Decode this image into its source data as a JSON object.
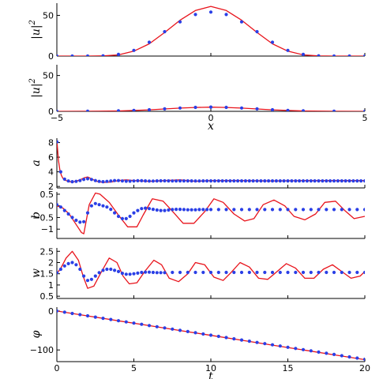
{
  "colors": {
    "model_line": "#e8131b",
    "simulation_dots": "#2a3fe6",
    "axes": "#000000"
  },
  "chart_data": [
    {
      "id": "profile_a",
      "type": "line",
      "ylabel": "|u|^2",
      "xlabel": "",
      "xlim": [
        -5,
        5
      ],
      "ylim": [
        0,
        65
      ],
      "yticks": [
        0,
        50
      ],
      "yticklabels": [
        "0",
        "50"
      ],
      "xticks": [
        -5,
        0,
        5
      ],
      "xticklabels": [],
      "series": [
        {
          "style": "line",
          "x": [
            -5,
            -4.5,
            -4,
            -3.5,
            -3,
            -2.5,
            -2,
            -1.5,
            -1,
            -0.5,
            0,
            0.5,
            1,
            1.5,
            2,
            2.5,
            3,
            3.5,
            4,
            4.5,
            5
          ],
          "y": [
            0,
            0,
            0,
            0.2,
            1.5,
            6,
            15,
            29,
            44,
            56,
            61,
            56,
            44,
            29,
            15,
            6,
            1.5,
            0.2,
            0,
            0,
            0
          ]
        },
        {
          "style": "dots",
          "x": [
            -5,
            -4.5,
            -4,
            -3.5,
            -3,
            -2.5,
            -2,
            -1.5,
            -1,
            -0.5,
            0,
            0.5,
            1,
            1.5,
            2,
            2.5,
            3,
            3.5,
            4,
            4.5,
            5
          ],
          "y": [
            0,
            0,
            0,
            0.3,
            2,
            7,
            17,
            30,
            42,
            51,
            54,
            51,
            42,
            30,
            17,
            7,
            2,
            0.3,
            0,
            0,
            0
          ]
        }
      ]
    },
    {
      "id": "profile_b",
      "type": "line",
      "ylabel": "|u|^2",
      "xlabel": "x",
      "xlim": [
        -5,
        5
      ],
      "ylim": [
        0,
        65
      ],
      "yticks": [
        0,
        50
      ],
      "yticklabels": [
        "0",
        "50"
      ],
      "xticks": [
        -5,
        0,
        5
      ],
      "xticklabels": [
        "−5",
        "0",
        "5"
      ],
      "series": [
        {
          "style": "line",
          "x": [
            -5,
            -4,
            -3,
            -2.5,
            -2,
            -1.5,
            -1,
            -0.5,
            0,
            0.5,
            1,
            1.5,
            2,
            2.5,
            3,
            4,
            5
          ],
          "y": [
            0,
            0.1,
            0.6,
            1.2,
            2.1,
            3.3,
            4.5,
            5.4,
            5.8,
            5.4,
            4.5,
            3.3,
            2.1,
            1.2,
            0.6,
            0.1,
            0
          ]
        },
        {
          "style": "dots",
          "x": [
            -5,
            -4,
            -3,
            -2.5,
            -2,
            -1.5,
            -1,
            -0.5,
            0,
            0.5,
            1,
            1.5,
            2,
            2.5,
            3,
            4,
            5
          ],
          "y": [
            0,
            0.1,
            0.7,
            1.3,
            2.2,
            3.4,
            4.6,
            5.5,
            5.9,
            5.5,
            4.6,
            3.4,
            2.2,
            1.3,
            0.7,
            0.1,
            0
          ]
        }
      ]
    },
    {
      "id": "a_vs_t",
      "type": "line",
      "ylabel": "a",
      "xlabel": "",
      "xlim": [
        0,
        20
      ],
      "ylim": [
        1.8,
        8.6
      ],
      "yticks": [
        2,
        4,
        6,
        8
      ],
      "yticklabels": [
        "2",
        "4",
        "6",
        "8"
      ],
      "xticks": [
        0,
        5,
        10,
        15,
        20
      ],
      "xticklabels": [],
      "series": [
        {
          "style": "line",
          "x": [
            0,
            0.1,
            0.2,
            0.3,
            0.4,
            0.6,
            0.8,
            1,
            1.2,
            1.5,
            1.8,
            2,
            2.3,
            2.6,
            3,
            3.5,
            4,
            4.5,
            5,
            6,
            7,
            8,
            9,
            10,
            12,
            14,
            16,
            18,
            20
          ],
          "y": [
            8.3,
            5.6,
            4.2,
            3.5,
            3.1,
            2.8,
            2.65,
            2.6,
            2.7,
            2.9,
            3.2,
            3.3,
            3.0,
            2.7,
            2.55,
            2.6,
            2.8,
            2.9,
            2.8,
            2.7,
            2.8,
            2.9,
            2.7,
            2.8,
            2.8,
            2.75,
            2.8,
            2.8,
            2.8
          ]
        },
        {
          "style": "dots",
          "x": [
            0,
            0.25,
            0.5,
            0.75,
            1,
            1.25,
            1.5,
            1.75,
            2,
            2.25,
            2.5,
            2.75,
            3,
            3.25,
            3.5,
            3.75,
            4,
            4.25,
            4.5,
            4.75,
            5,
            5.25,
            5.5,
            5.75,
            6,
            6.25,
            6.5,
            6.75,
            7,
            7.25,
            7.5,
            7.75,
            8,
            8.25,
            8.5,
            8.75,
            9,
            9.25,
            9.5,
            9.75,
            10,
            10.25,
            10.5,
            10.75,
            11,
            11.25,
            11.5,
            11.75,
            12,
            12.25,
            12.5,
            12.75,
            13,
            13.25,
            13.5,
            13.75,
            14,
            14.25,
            14.5,
            14.75,
            15,
            15.25,
            15.5,
            15.75,
            16,
            16.25,
            16.5,
            16.75,
            17,
            17.25,
            17.5,
            17.75,
            18,
            18.25,
            18.5,
            18.75,
            19,
            19.25,
            19.5,
            19.75,
            20
          ],
          "y": [
            8.1,
            4.0,
            3.0,
            2.75,
            2.65,
            2.7,
            2.8,
            2.95,
            3.05,
            2.95,
            2.8,
            2.7,
            2.65,
            2.7,
            2.75,
            2.8,
            2.8,
            2.75,
            2.72,
            2.72,
            2.75,
            2.78,
            2.78,
            2.76,
            2.74,
            2.74,
            2.76,
            2.77,
            2.77,
            2.76,
            2.75,
            2.75,
            2.76,
            2.76,
            2.76,
            2.76,
            2.75,
            2.75,
            2.76,
            2.76,
            2.76,
            2.76,
            2.76,
            2.76,
            2.76,
            2.76,
            2.76,
            2.76,
            2.76,
            2.76,
            2.76,
            2.76,
            2.76,
            2.76,
            2.76,
            2.76,
            2.76,
            2.76,
            2.76,
            2.76,
            2.76,
            2.76,
            2.76,
            2.76,
            2.76,
            2.76,
            2.76,
            2.76,
            2.76,
            2.76,
            2.76,
            2.76,
            2.76,
            2.76,
            2.76,
            2.76,
            2.76,
            2.76,
            2.76,
            2.76,
            2.76
          ]
        }
      ]
    },
    {
      "id": "b_vs_t",
      "type": "line",
      "ylabel": "b",
      "xlabel": "",
      "xlim": [
        0,
        20
      ],
      "ylim": [
        -1.4,
        0.6
      ],
      "yticks": [
        -1,
        -0.5,
        0,
        0.5
      ],
      "yticklabels": [
        "−1",
        "−0.5",
        "0",
        "0.5"
      ],
      "xticks": [
        0,
        5,
        10,
        15,
        20
      ],
      "xticklabels": [],
      "series": [
        {
          "style": "line",
          "x": [
            0,
            0.4,
            0.8,
            1.2,
            1.6,
            1.75,
            2.1,
            2.5,
            2.8,
            3.4,
            4.0,
            4.6,
            5.2,
            5.6,
            6.2,
            6.9,
            7.6,
            8.2,
            8.9,
            9.6,
            10.2,
            10.8,
            11.5,
            12.2,
            12.8,
            13.4,
            14.1,
            14.8,
            15.4,
            16.1,
            16.8,
            17.4,
            18.1,
            18.7,
            19.3,
            20
          ],
          "y": [
            0,
            -0.1,
            -0.35,
            -0.75,
            -1.15,
            -1.2,
            0.05,
            0.55,
            0.5,
            0.15,
            -0.4,
            -0.9,
            -0.9,
            -0.4,
            0.3,
            0.2,
            -0.3,
            -0.75,
            -0.75,
            -0.25,
            0.3,
            0.15,
            -0.35,
            -0.65,
            -0.55,
            0.05,
            0.25,
            0.0,
            -0.45,
            -0.6,
            -0.35,
            0.15,
            0.2,
            -0.2,
            -0.55,
            -0.45
          ]
        },
        {
          "style": "dots",
          "x": [
            0,
            0.25,
            0.5,
            0.75,
            1,
            1.25,
            1.5,
            1.75,
            2,
            2.25,
            2.5,
            2.75,
            3,
            3.25,
            3.5,
            3.75,
            4,
            4.25,
            4.5,
            4.75,
            5,
            5.25,
            5.5,
            5.75,
            6,
            6.25,
            6.5,
            6.75,
            7,
            7.25,
            7.5,
            7.75,
            8,
            8.25,
            8.5,
            8.75,
            9,
            9.25,
            9.5,
            9.75,
            10,
            10.5,
            11,
            11.5,
            12,
            12.5,
            13,
            13.5,
            14,
            14.5,
            15,
            15.5,
            16,
            16.5,
            17,
            17.5,
            18,
            18.5,
            19,
            19.5,
            20
          ],
          "y": [
            0.05,
            -0.05,
            -0.2,
            -0.35,
            -0.5,
            -0.62,
            -0.7,
            -0.68,
            -0.3,
            0.0,
            0.1,
            0.05,
            0.0,
            -0.05,
            -0.15,
            -0.3,
            -0.45,
            -0.55,
            -0.55,
            -0.45,
            -0.3,
            -0.2,
            -0.12,
            -0.1,
            -0.12,
            -0.15,
            -0.18,
            -0.2,
            -0.2,
            -0.18,
            -0.16,
            -0.15,
            -0.15,
            -0.16,
            -0.17,
            -0.17,
            -0.17,
            -0.16,
            -0.16,
            -0.16,
            -0.16,
            -0.16,
            -0.16,
            -0.16,
            -0.16,
            -0.16,
            -0.16,
            -0.16,
            -0.16,
            -0.16,
            -0.16,
            -0.16,
            -0.16,
            -0.16,
            -0.16,
            -0.16,
            -0.16,
            -0.16,
            -0.16,
            -0.16,
            -0.16
          ]
        }
      ]
    },
    {
      "id": "w_vs_t",
      "type": "line",
      "ylabel": "w",
      "xlabel": "",
      "xlim": [
        0,
        20
      ],
      "ylim": [
        0.4,
        2.65
      ],
      "yticks": [
        0.5,
        1,
        1.5,
        2,
        2.5
      ],
      "yticklabels": [
        "0.5",
        "1",
        "1.5",
        "2",
        "2.5"
      ],
      "xticks": [
        0,
        5,
        10,
        15,
        20
      ],
      "xticklabels": [],
      "series": [
        {
          "style": "line",
          "x": [
            0,
            0.3,
            0.6,
            1.0,
            1.4,
            1.7,
            2.0,
            2.4,
            2.9,
            3.4,
            3.9,
            4.3,
            4.7,
            5.2,
            5.7,
            6.3,
            6.8,
            7.3,
            7.9,
            8.5,
            9.0,
            9.6,
            10.2,
            10.8,
            11.3,
            11.9,
            12.5,
            13.1,
            13.7,
            14.3,
            14.9,
            15.5,
            16.1,
            16.7,
            17.3,
            17.9,
            18.5,
            19.1,
            19.7,
            20
          ],
          "y": [
            1.5,
            1.8,
            2.2,
            2.5,
            2.1,
            1.4,
            0.85,
            0.95,
            1.6,
            2.2,
            2.0,
            1.4,
            1.05,
            1.1,
            1.6,
            2.1,
            1.9,
            1.3,
            1.15,
            1.5,
            2.0,
            1.9,
            1.35,
            1.2,
            1.55,
            2.0,
            1.8,
            1.3,
            1.25,
            1.6,
            1.95,
            1.75,
            1.3,
            1.3,
            1.7,
            1.9,
            1.6,
            1.3,
            1.4,
            1.6
          ]
        },
        {
          "style": "dots",
          "x": [
            0,
            0.25,
            0.5,
            0.75,
            1,
            1.25,
            1.5,
            1.75,
            2,
            2.25,
            2.5,
            2.75,
            3,
            3.25,
            3.5,
            3.75,
            4,
            4.25,
            4.5,
            4.75,
            5,
            5.25,
            5.5,
            5.75,
            6,
            6.25,
            6.5,
            6.75,
            7,
            7.5,
            8,
            8.5,
            9,
            9.5,
            10,
            10.5,
            11,
            11.5,
            12,
            12.5,
            13,
            13.5,
            14,
            14.5,
            15,
            15.5,
            16,
            16.5,
            17,
            17.5,
            18,
            18.5,
            19,
            19.5,
            20
          ],
          "y": [
            1.55,
            1.7,
            1.85,
            1.95,
            2.0,
            1.9,
            1.7,
            1.4,
            1.2,
            1.25,
            1.4,
            1.55,
            1.65,
            1.7,
            1.7,
            1.65,
            1.6,
            1.52,
            1.48,
            1.48,
            1.5,
            1.53,
            1.56,
            1.57,
            1.57,
            1.56,
            1.55,
            1.55,
            1.55,
            1.56,
            1.56,
            1.56,
            1.56,
            1.56,
            1.56,
            1.56,
            1.56,
            1.56,
            1.56,
            1.56,
            1.56,
            1.56,
            1.56,
            1.56,
            1.56,
            1.56,
            1.56,
            1.56,
            1.56,
            1.56,
            1.56,
            1.56,
            1.56,
            1.56,
            1.56
          ]
        }
      ]
    },
    {
      "id": "phi_vs_t",
      "type": "line",
      "ylabel": "φ",
      "xlabel": "t",
      "xlim": [
        0,
        20
      ],
      "ylim": [
        -130,
        10
      ],
      "yticks": [
        -100,
        0
      ],
      "yticklabels": [
        "−100",
        "0"
      ],
      "xticks": [
        0,
        5,
        10,
        15,
        20
      ],
      "xticklabels": [
        "0",
        "5",
        "10",
        "15",
        "20"
      ],
      "series": [
        {
          "style": "line",
          "x": [
            0,
            2,
            4,
            6,
            8,
            10,
            12,
            14,
            16,
            18,
            20
          ],
          "y": [
            0,
            -12.5,
            -25,
            -37.5,
            -50,
            -62.5,
            -75,
            -87.5,
            -100,
            -112.5,
            -125
          ]
        },
        {
          "style": "dots",
          "x": [
            0,
            0.5,
            1,
            1.5,
            2,
            2.5,
            3,
            3.5,
            4,
            4.5,
            5,
            5.5,
            6,
            6.5,
            7,
            7.5,
            8,
            8.5,
            9,
            9.5,
            10,
            10.5,
            11,
            11.5,
            12,
            12.5,
            13,
            13.5,
            14,
            14.5,
            15,
            15.5,
            16,
            16.5,
            17,
            17.5,
            18,
            18.5,
            19,
            19.5,
            20
          ],
          "y": [
            0,
            -3,
            -6.2,
            -9.3,
            -12.4,
            -15.5,
            -18.6,
            -21.7,
            -24.8,
            -27.9,
            -31,
            -34.1,
            -37.2,
            -40.3,
            -43.4,
            -46.5,
            -49.6,
            -52.7,
            -55.8,
            -58.9,
            -62,
            -65.1,
            -68.2,
            -71.3,
            -74.4,
            -77.5,
            -80.6,
            -83.7,
            -86.8,
            -89.9,
            -93,
            -96.1,
            -99.2,
            -102.3,
            -105.4,
            -108.5,
            -111.6,
            -114.7,
            -117.8,
            -120.9,
            -124
          ]
        }
      ]
    }
  ]
}
